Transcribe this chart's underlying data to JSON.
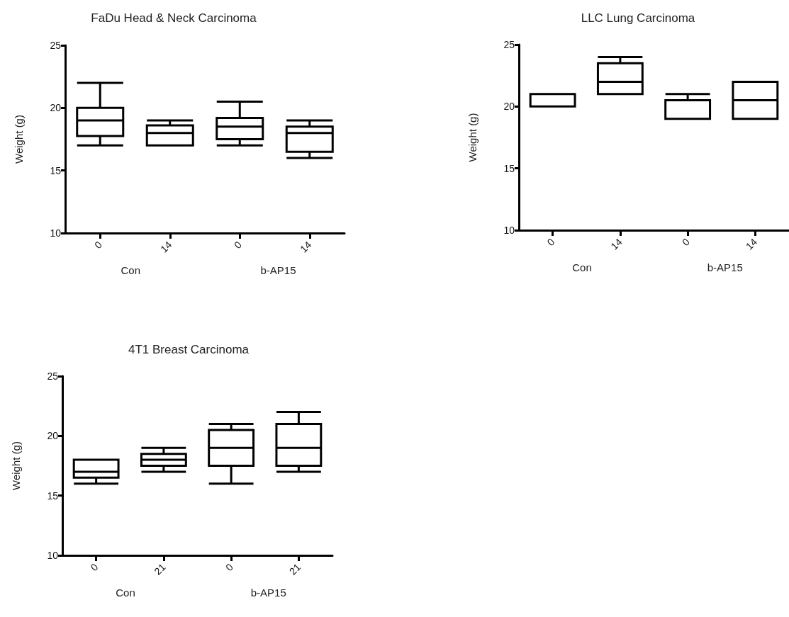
{
  "chart_data": [
    {
      "type": "box",
      "title": "FaDu Head & Neck Carcinoma",
      "ylabel": "Weight (g)",
      "categories": [
        "0",
        "14",
        "0",
        "14"
      ],
      "annotations": [
        "Con",
        "b-AP15"
      ],
      "ylim": [
        10,
        25
      ],
      "yticks": [
        10,
        15,
        20,
        25
      ],
      "boxes": [
        {
          "low": 17,
          "q1": 17.75,
          "median": 19,
          "q3": 20,
          "high": 22
        },
        {
          "low": 17,
          "q1": 17,
          "median": 18,
          "q3": 18.6,
          "high": 19
        },
        {
          "low": 17,
          "q1": 17.5,
          "median": 18.5,
          "q3": 19.2,
          "high": 20.5
        },
        {
          "low": 16,
          "q1": 16.5,
          "median": 18,
          "q3": 18.5,
          "high": 19
        }
      ]
    },
    {
      "type": "box",
      "title": "LLC Lung Carcinoma",
      "ylabel": "Weight (g)",
      "categories": [
        "0",
        "14",
        "0",
        "14"
      ],
      "annotations": [
        "Con",
        "b-AP15"
      ],
      "ylim": [
        10,
        25
      ],
      "yticks": [
        10,
        15,
        20,
        25
      ],
      "boxes": [
        {
          "low": 20,
          "q1": 20,
          "median": 20,
          "q3": 21,
          "high": 21
        },
        {
          "low": 21,
          "q1": 21,
          "median": 22,
          "q3": 23.5,
          "high": 24
        },
        {
          "low": 19,
          "q1": 19,
          "median": 19,
          "q3": 20.5,
          "high": 21
        },
        {
          "low": 19,
          "q1": 19,
          "median": 20.5,
          "q3": 22,
          "high": 22
        }
      ]
    },
    {
      "type": "box",
      "title": "4T1 Breast Carcinoma",
      "ylabel": "Weight (g)",
      "categories": [
        "0",
        "21",
        "0",
        "21"
      ],
      "annotations": [
        "Con",
        "b-AP15"
      ],
      "ylim": [
        10,
        25
      ],
      "yticks": [
        10,
        15,
        20,
        25
      ],
      "boxes": [
        {
          "low": 16,
          "q1": 16.5,
          "median": 17,
          "q3": 18,
          "high": 18
        },
        {
          "low": 17,
          "q1": 17.5,
          "median": 18,
          "q3": 18.5,
          "high": 19
        },
        {
          "low": 16,
          "q1": 17.5,
          "median": 19,
          "q3": 20.5,
          "high": 21
        },
        {
          "low": 17,
          "q1": 17.5,
          "median": 19,
          "q3": 21,
          "high": 22
        }
      ]
    }
  ]
}
